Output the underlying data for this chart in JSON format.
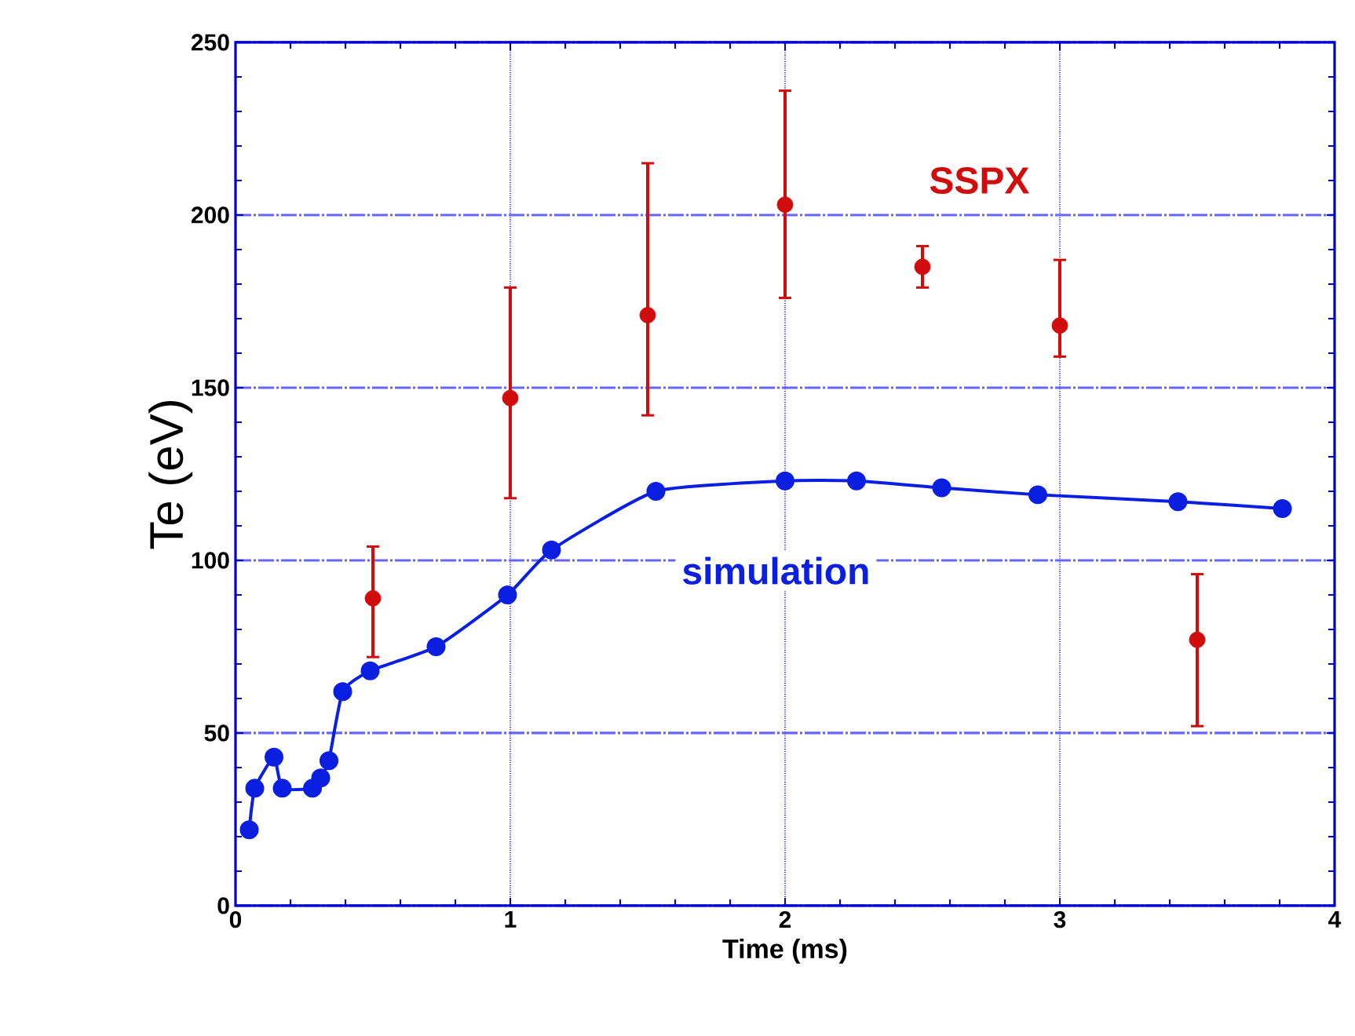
{
  "chart_data": {
    "type": "scatter",
    "xlabel": "Time (ms)",
    "ylabel": "Te (eV)",
    "xlim": [
      0,
      4
    ],
    "xticks": [
      0,
      1,
      2,
      3,
      4
    ],
    "ylim": [
      0,
      250
    ],
    "yticks": [
      0,
      50,
      100,
      150,
      200,
      250
    ],
    "grid": true,
    "legend": false,
    "marker": "circle",
    "series": [
      {
        "name": "simulation",
        "type": "line",
        "color": "#0a1fe0",
        "x": [
          0.05,
          0.07,
          0.14,
          0.17,
          0.28,
          0.31,
          0.34,
          0.39,
          0.49,
          0.73,
          0.99,
          1.15,
          1.53,
          2.0,
          2.26,
          2.57,
          2.92,
          3.43,
          3.81
        ],
        "values": [
          22,
          34,
          43,
          34,
          34,
          37,
          42,
          62,
          68,
          75,
          90,
          103,
          120,
          123,
          123,
          121,
          119,
          117,
          115
        ]
      },
      {
        "name": "SSPX",
        "color": "#d00c0c",
        "x": [
          0.5,
          1.0,
          1.5,
          2.0,
          2.5,
          3.0,
          3.5
        ],
        "values": [
          89,
          147,
          171,
          203,
          185,
          168,
          77
        ],
        "errors": [
          [
            72,
            104
          ],
          [
            118,
            179
          ],
          [
            142,
            215
          ],
          [
            176,
            236
          ],
          [
            179,
            191
          ],
          [
            159,
            187
          ],
          [
            52,
            96
          ]
        ]
      }
    ]
  }
}
